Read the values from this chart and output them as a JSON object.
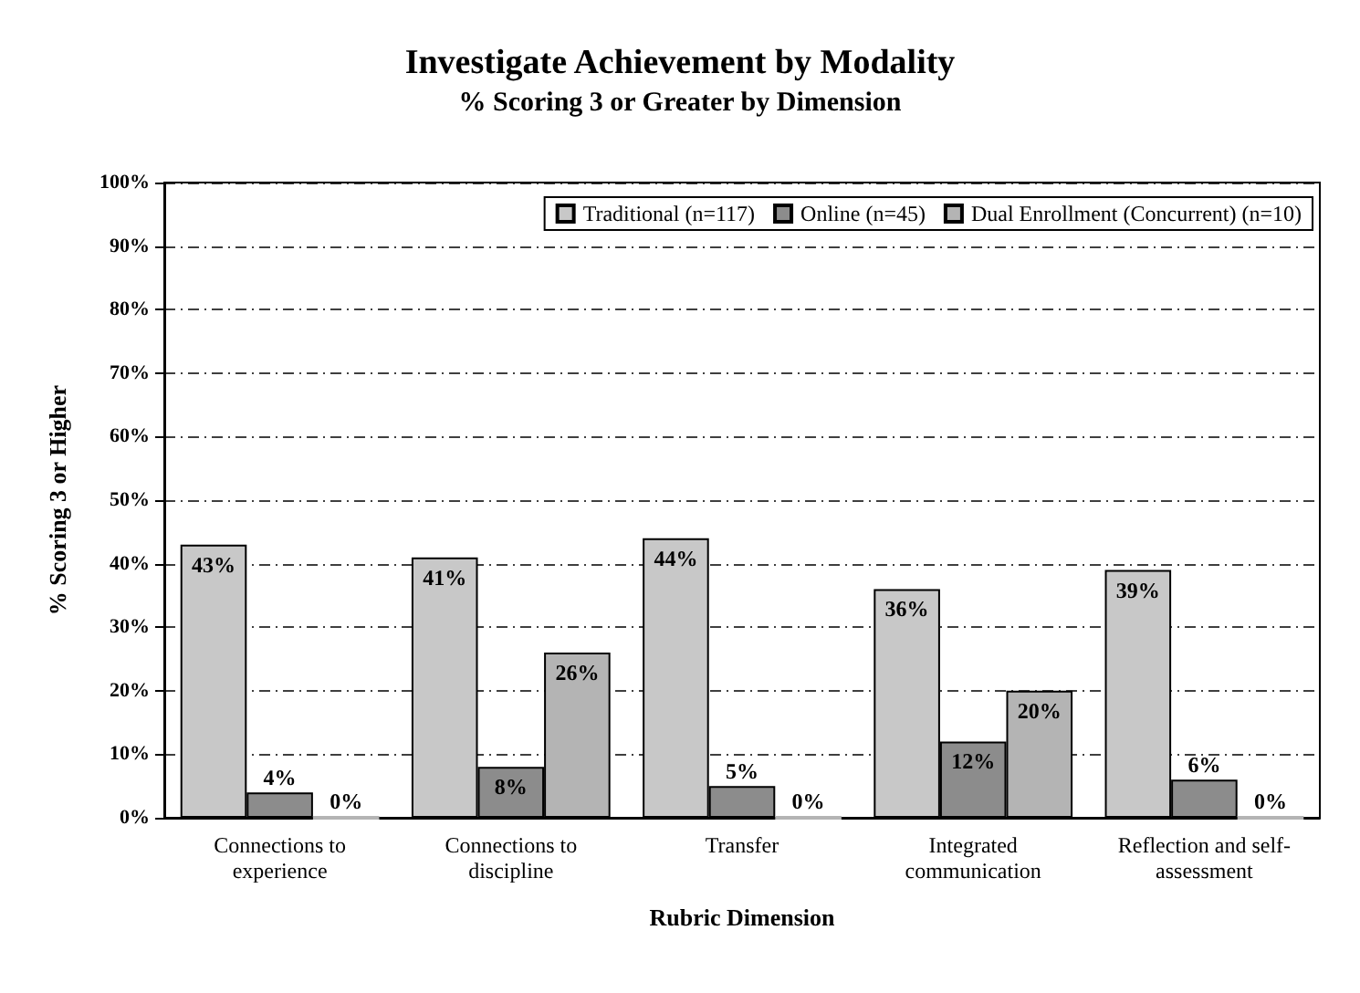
{
  "chart_data": {
    "type": "bar",
    "title": "Investigate Achievement by Modality",
    "subtitle": "% Scoring 3 or Greater by Dimension",
    "xlabel": "Rubric Dimension",
    "ylabel": "% Scoring 3 or Higher",
    "categories": [
      "Connections to\nexperience",
      "Connections to\ndiscipline",
      "Transfer",
      "Integrated\ncommunication",
      "Reflection and self-\nassessment"
    ],
    "series": [
      {
        "name": "Traditional (n=117)",
        "color": "#c8c8c8",
        "values": [
          43,
          41,
          44,
          36,
          39
        ],
        "value_labels": [
          "43%",
          "41%",
          "44%",
          "36%",
          "39%"
        ]
      },
      {
        "name": "Online (n=45)",
        "color": "#8c8c8c",
        "values": [
          4,
          8,
          5,
          12,
          6
        ],
        "value_labels": [
          "4%",
          "8%",
          "5%",
          "12%",
          "6%"
        ]
      },
      {
        "name": "Dual Enrollment (Concurrent) (n=10)",
        "color": "#b4b4b4",
        "values": [
          0,
          26,
          0,
          20,
          0
        ],
        "value_labels": [
          "0%",
          "26%",
          "0%",
          "20%",
          "0%"
        ]
      }
    ],
    "ylim": [
      0,
      100
    ],
    "yticks": [
      {
        "value": 0,
        "label": "0%"
      },
      {
        "value": 10,
        "label": "10%"
      },
      {
        "value": 20,
        "label": "20%"
      },
      {
        "value": 30,
        "label": "30%"
      },
      {
        "value": 40,
        "label": "40%"
      },
      {
        "value": 50,
        "label": "50%"
      },
      {
        "value": 60,
        "label": "60%"
      },
      {
        "value": 70,
        "label": "70%"
      },
      {
        "value": 80,
        "label": "80%"
      },
      {
        "value": 90,
        "label": "90%"
      },
      {
        "value": 100,
        "label": "100%"
      }
    ],
    "grid": "y",
    "legend": "top right"
  }
}
